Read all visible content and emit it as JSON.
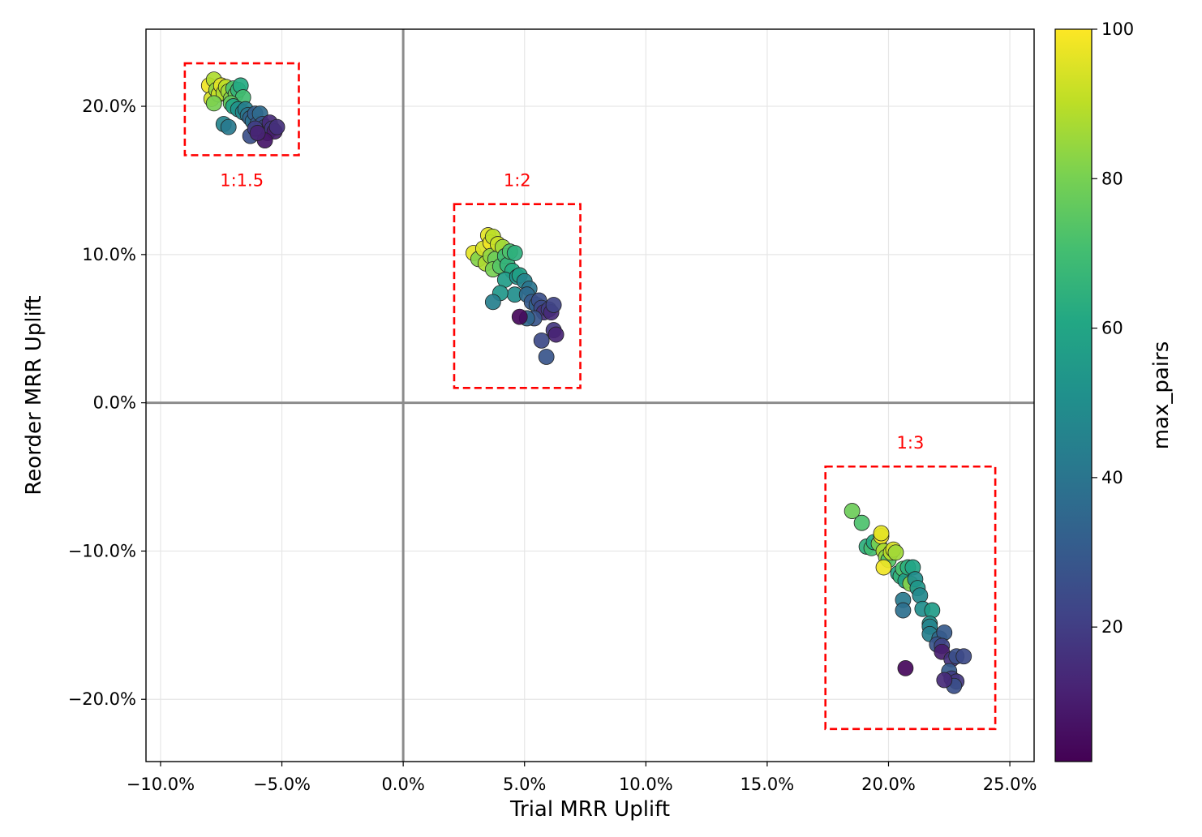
{
  "chart_data": {
    "type": "scatter",
    "title": "",
    "xlabel": "Trial MRR Uplift",
    "ylabel": "Reorder MRR Uplift",
    "xlim": [
      -0.106,
      0.26
    ],
    "ylim": [
      -0.242,
      0.252
    ],
    "x_ticks": [
      -0.1,
      -0.05,
      0.0,
      0.05,
      0.1,
      0.15,
      0.2,
      0.25
    ],
    "x_tick_labels": [
      "−10.0%",
      "−5.0%",
      "0.0%",
      "5.0%",
      "10.0%",
      "15.0%",
      "20.0%",
      "25.0%"
    ],
    "y_ticks": [
      -0.2,
      -0.1,
      0.0,
      0.1,
      0.2
    ],
    "y_tick_labels": [
      "−20.0%",
      "−10.0%",
      "0.0%",
      "10.0%",
      "20.0%"
    ],
    "grid": true,
    "colorbar": {
      "label": "max_pairs",
      "colormap": "viridis",
      "range": [
        2,
        100
      ],
      "ticks": [
        20,
        40,
        60,
        80,
        100
      ],
      "tick_labels": [
        "20",
        "40",
        "60",
        "80",
        "100"
      ]
    },
    "groups": [
      {
        "label": "1:1.5",
        "box": [
          -0.09,
          -0.043,
          0.167,
          0.229
        ],
        "points": [
          [
            -0.08,
            0.214,
            98
          ],
          [
            -0.078,
            0.218,
            88
          ],
          [
            -0.079,
            0.205,
            94
          ],
          [
            -0.077,
            0.211,
            84
          ],
          [
            -0.076,
            0.208,
            92
          ],
          [
            -0.075,
            0.214,
            96
          ],
          [
            -0.074,
            0.209,
            88
          ],
          [
            -0.073,
            0.213,
            90
          ],
          [
            -0.072,
            0.21,
            86
          ],
          [
            -0.071,
            0.205,
            82
          ],
          [
            -0.078,
            0.202,
            80
          ],
          [
            -0.07,
            0.212,
            72
          ],
          [
            -0.069,
            0.208,
            78
          ],
          [
            -0.068,
            0.211,
            66
          ],
          [
            -0.067,
            0.214,
            62
          ],
          [
            -0.066,
            0.206,
            70
          ],
          [
            -0.071,
            0.202,
            76
          ],
          [
            -0.07,
            0.2,
            60
          ],
          [
            -0.068,
            0.198,
            52
          ],
          [
            -0.066,
            0.196,
            48
          ],
          [
            -0.065,
            0.198,
            44
          ],
          [
            -0.064,
            0.194,
            40
          ],
          [
            -0.063,
            0.192,
            34
          ],
          [
            -0.062,
            0.19,
            38
          ],
          [
            -0.061,
            0.195,
            32
          ],
          [
            -0.06,
            0.188,
            30
          ],
          [
            -0.059,
            0.195,
            36
          ],
          [
            -0.058,
            0.188,
            28
          ],
          [
            -0.057,
            0.186,
            24
          ],
          [
            -0.056,
            0.182,
            22
          ],
          [
            -0.055,
            0.189,
            14
          ],
          [
            -0.054,
            0.185,
            18
          ],
          [
            -0.053,
            0.183,
            10
          ],
          [
            -0.052,
            0.186,
            16
          ],
          [
            -0.057,
            0.177,
            8
          ],
          [
            -0.063,
            0.18,
            26
          ],
          [
            -0.061,
            0.185,
            20
          ],
          [
            -0.074,
            0.188,
            46
          ],
          [
            -0.072,
            0.186,
            42
          ],
          [
            -0.06,
            0.182,
            12
          ]
        ]
      },
      {
        "label": "1:2",
        "box": [
          0.021,
          0.073,
          0.01,
          0.134
        ],
        "points": [
          [
            0.029,
            0.101,
            96
          ],
          [
            0.031,
            0.097,
            82
          ],
          [
            0.033,
            0.104,
            94
          ],
          [
            0.035,
            0.113,
            96
          ],
          [
            0.036,
            0.108,
            98
          ],
          [
            0.037,
            0.112,
            90
          ],
          [
            0.034,
            0.094,
            88
          ],
          [
            0.036,
            0.099,
            84
          ],
          [
            0.038,
            0.097,
            78
          ],
          [
            0.039,
            0.107,
            92
          ],
          [
            0.037,
            0.09,
            80
          ],
          [
            0.04,
            0.092,
            74
          ],
          [
            0.041,
            0.105,
            86
          ],
          [
            0.042,
            0.099,
            70
          ],
          [
            0.043,
            0.093,
            66
          ],
          [
            0.044,
            0.102,
            72
          ],
          [
            0.045,
            0.089,
            62
          ],
          [
            0.046,
            0.101,
            64
          ],
          [
            0.042,
            0.083,
            56
          ],
          [
            0.047,
            0.085,
            52
          ],
          [
            0.048,
            0.086,
            58
          ],
          [
            0.05,
            0.082,
            46
          ],
          [
            0.052,
            0.077,
            40
          ],
          [
            0.046,
            0.073,
            50
          ],
          [
            0.04,
            0.074,
            54
          ],
          [
            0.037,
            0.068,
            44
          ],
          [
            0.051,
            0.073,
            36
          ],
          [
            0.053,
            0.068,
            30
          ],
          [
            0.055,
            0.066,
            32
          ],
          [
            0.056,
            0.069,
            26
          ],
          [
            0.057,
            0.064,
            24
          ],
          [
            0.058,
            0.061,
            16
          ],
          [
            0.06,
            0.063,
            20
          ],
          [
            0.061,
            0.061,
            14
          ],
          [
            0.062,
            0.066,
            22
          ],
          [
            0.054,
            0.057,
            28
          ],
          [
            0.051,
            0.057,
            34
          ],
          [
            0.048,
            0.058,
            4
          ],
          [
            0.062,
            0.049,
            18
          ],
          [
            0.063,
            0.046,
            12
          ],
          [
            0.057,
            0.042,
            24
          ],
          [
            0.059,
            0.031,
            28
          ]
        ]
      },
      {
        "label": "1:3",
        "box": [
          0.174,
          0.244,
          -0.22,
          -0.043
        ],
        "points": [
          [
            0.185,
            -0.073,
            78
          ],
          [
            0.189,
            -0.081,
            72
          ],
          [
            0.191,
            -0.097,
            64
          ],
          [
            0.193,
            -0.098,
            70
          ],
          [
            0.194,
            -0.094,
            62
          ],
          [
            0.196,
            -0.095,
            80
          ],
          [
            0.197,
            -0.09,
            100
          ],
          [
            0.197,
            -0.088,
            96
          ],
          [
            0.198,
            -0.1,
            88
          ],
          [
            0.199,
            -0.104,
            84
          ],
          [
            0.2,
            -0.106,
            74
          ],
          [
            0.201,
            -0.101,
            90
          ],
          [
            0.198,
            -0.111,
            98
          ],
          [
            0.202,
            -0.099,
            94
          ],
          [
            0.203,
            -0.101,
            86
          ],
          [
            0.204,
            -0.115,
            60
          ],
          [
            0.205,
            -0.117,
            66
          ],
          [
            0.206,
            -0.112,
            72
          ],
          [
            0.207,
            -0.12,
            58
          ],
          [
            0.208,
            -0.111,
            64
          ],
          [
            0.209,
            -0.122,
            82
          ],
          [
            0.21,
            -0.111,
            60
          ],
          [
            0.211,
            -0.119,
            50
          ],
          [
            0.212,
            -0.125,
            54
          ],
          [
            0.213,
            -0.13,
            48
          ],
          [
            0.206,
            -0.133,
            42
          ],
          [
            0.206,
            -0.14,
            38
          ],
          [
            0.214,
            -0.139,
            50
          ],
          [
            0.218,
            -0.14,
            56
          ],
          [
            0.217,
            -0.149,
            52
          ],
          [
            0.217,
            -0.151,
            46
          ],
          [
            0.217,
            -0.156,
            44
          ],
          [
            0.221,
            -0.159,
            36
          ],
          [
            0.223,
            -0.155,
            30
          ],
          [
            0.22,
            -0.163,
            28
          ],
          [
            0.222,
            -0.164,
            22
          ],
          [
            0.222,
            -0.168,
            10
          ],
          [
            0.226,
            -0.173,
            16
          ],
          [
            0.228,
            -0.171,
            26
          ],
          [
            0.231,
            -0.171,
            24
          ],
          [
            0.225,
            -0.181,
            30
          ],
          [
            0.226,
            -0.186,
            20
          ],
          [
            0.228,
            -0.188,
            18
          ],
          [
            0.227,
            -0.191,
            26
          ],
          [
            0.223,
            -0.187,
            14
          ],
          [
            0.207,
            -0.179,
            4
          ]
        ]
      }
    ]
  },
  "colors": {
    "box": "#ff0000",
    "zero_line": "#8c8c8c",
    "grid": "#e6e6e6",
    "marker_edge": "#222222"
  }
}
